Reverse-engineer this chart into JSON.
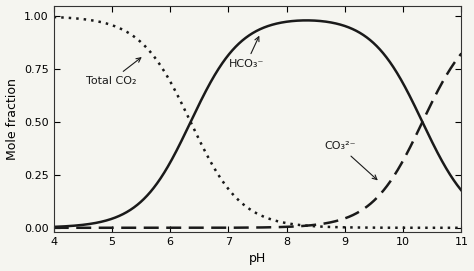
{
  "title": "",
  "xlabel": "pH",
  "ylabel": "Mole fraction",
  "xlim": [
    4,
    11
  ],
  "ylim": [
    -0.02,
    1.05
  ],
  "xticks": [
    4,
    5,
    6,
    7,
    8,
    9,
    10,
    11
  ],
  "yticks": [
    0.0,
    0.25,
    0.5,
    0.75,
    1.0
  ],
  "pKa1": 6.35,
  "pKa2": 10.33,
  "label_total_co2": "Total CO₂",
  "label_hco3": "HCO₃⁻",
  "label_co3": "CO₃²⁻",
  "curve_color": "#1a1a1a",
  "background_color": "#f5f5f0",
  "annotation_fontsize": 8,
  "axis_fontsize": 9,
  "tick_labelsize": 8
}
